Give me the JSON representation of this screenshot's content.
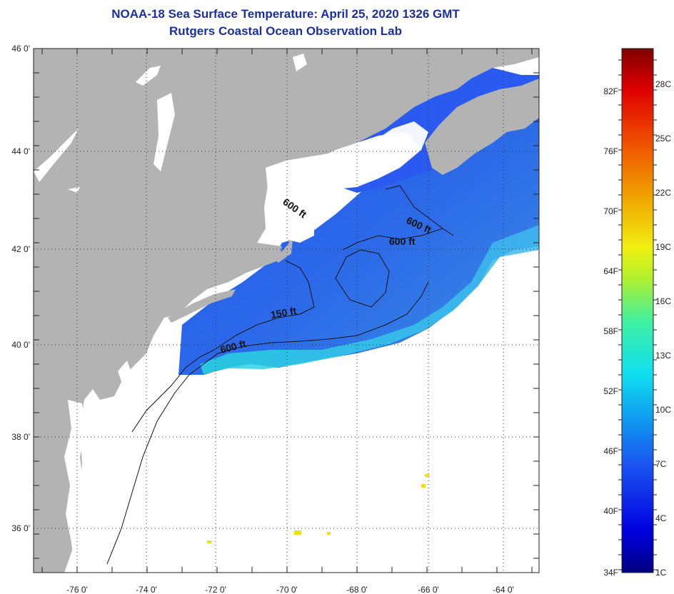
{
  "header": {
    "title": "NOAA-18 Sea Surface Temperature:  April 25, 2020 1326 GMT",
    "subtitle": "Rutgers Coastal Ocean Observation Lab"
  },
  "axes": {
    "latitude_labels": [
      "46 0'",
      "44 0'",
      "42 0'",
      "40 0'",
      "38 0'",
      "36 0'"
    ],
    "longitude_labels": [
      "-76 0'",
      "-74 0'",
      "-72 0'",
      "-70 0'",
      "-68 0'",
      "-66 0'",
      "-64 0'"
    ]
  },
  "contour_labels": [
    "600 ft",
    "600 ft",
    "600 ft",
    "150 ft",
    "600 ft"
  ],
  "colorbar": {
    "fahrenheit": [
      "82F",
      "76F",
      "70F",
      "64F",
      "58F",
      "52F",
      "46F",
      "40F",
      "34F"
    ],
    "celsius": [
      "28C",
      "25C",
      "22C",
      "19C",
      "16C",
      "13C",
      "10C",
      "7C",
      "4C",
      "1C"
    ]
  },
  "colors": {
    "title": "#1a2fa0",
    "land": "#b3b3b3",
    "cloud_no_data": "#ffffff",
    "water_cold": "#2a5ef0",
    "water_warm": "#22d0e8"
  }
}
